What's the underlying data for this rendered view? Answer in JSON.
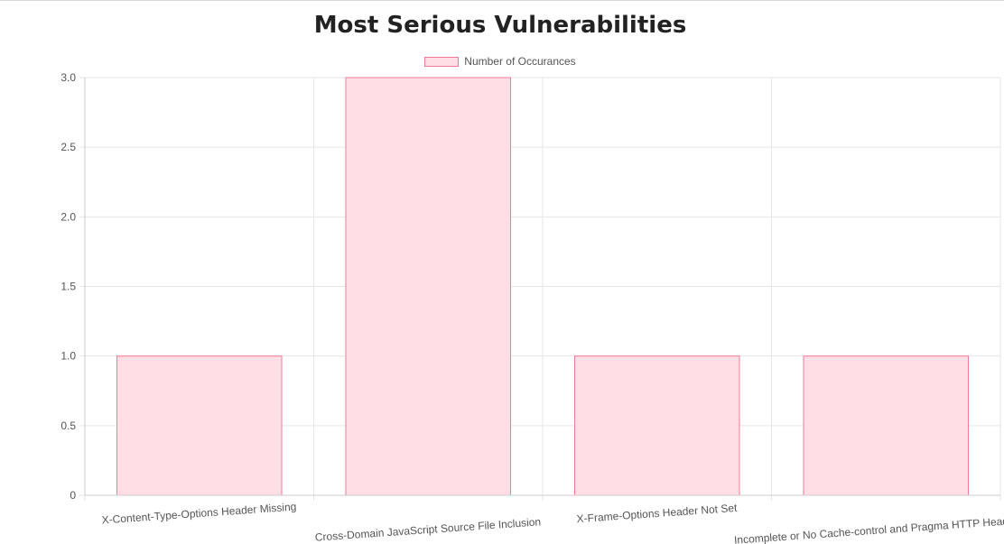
{
  "chart_data": {
    "type": "bar",
    "title": "Most Serious Vulnerabilities",
    "xlabel": "",
    "ylabel": "",
    "categories": [
      "X-Content-Type-Options Header Missing",
      "Cross-Domain JavaScript Source File Inclusion",
      "X-Frame-Options Header Not Set",
      "Incomplete or No Cache-control and Pragma HTTP Header Set"
    ],
    "series": [
      {
        "name": "Number of Occurances",
        "values": [
          1,
          3,
          1,
          1
        ]
      }
    ],
    "ylim": [
      0,
      3
    ],
    "y_ticks": [
      "0",
      "0.5",
      "1.0",
      "1.5",
      "2.0",
      "2.5",
      "3.0"
    ],
    "y_tick_values": [
      0,
      0.5,
      1,
      1.5,
      2,
      2.5,
      3
    ],
    "grid": true,
    "legend_position": "top-center",
    "colors": {
      "bar_fill": "#ffdfe5",
      "bar_border": "#f07b98",
      "grid": "#e6e6e6",
      "axis": "#cccccc"
    }
  }
}
